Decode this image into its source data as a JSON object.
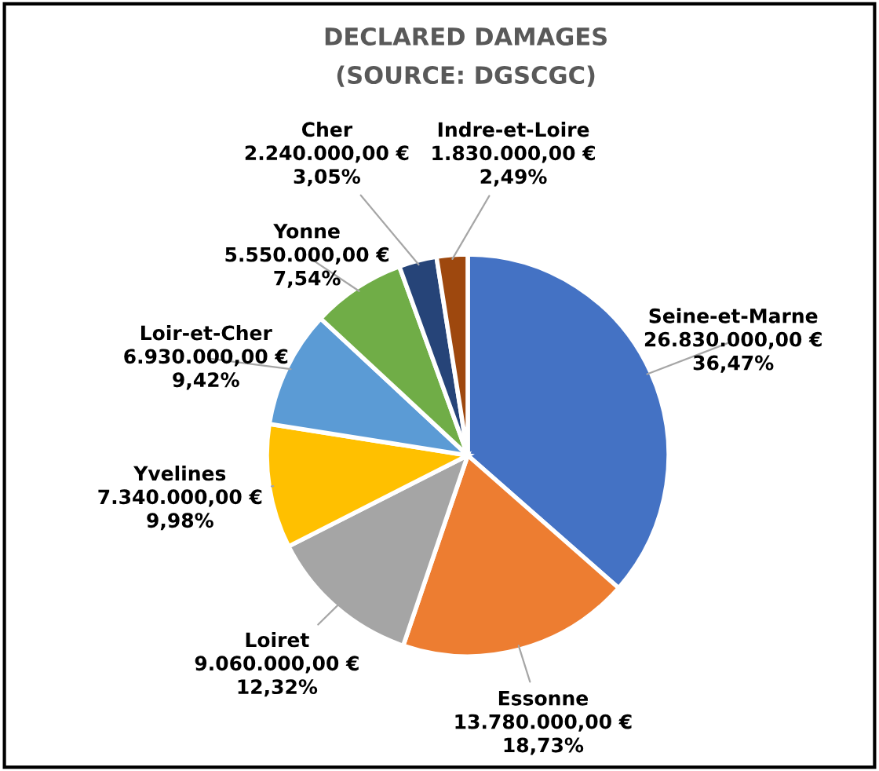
{
  "chart_data": {
    "type": "pie",
    "title": "DECLARED DAMAGES",
    "subtitle": "(SOURCE: DGSCGC)",
    "categories": [
      "Seine-et-Marne",
      "Essonne",
      "Loiret",
      "Yvelines",
      "Loir-et-Cher",
      "Yonne",
      "Cher",
      "Indre-et-Loire"
    ],
    "values": [
      26830000,
      13780000,
      9060000,
      7340000,
      6930000,
      5550000,
      2240000,
      1830000
    ],
    "value_labels": [
      "26.830.000,00 €\n36,47%",
      "13.780.000,00 €\n18,73%",
      "9.060.000,00 €\n12,32%",
      "7.340.000,00 €\n9,98%",
      "6.930.000,00 €\n9,42%",
      "5.550.000,00 €\n7,54%",
      "2.240.000,00 €\n3,05%",
      "1.830.000,00 €\n2,49%"
    ],
    "colors": [
      "#4472c4",
      "#ed7d31",
      "#a5a5a5",
      "#ffc000",
      "#5b9bd5",
      "#70ad47",
      "#264478",
      "#9e480e"
    ],
    "legend": false
  }
}
